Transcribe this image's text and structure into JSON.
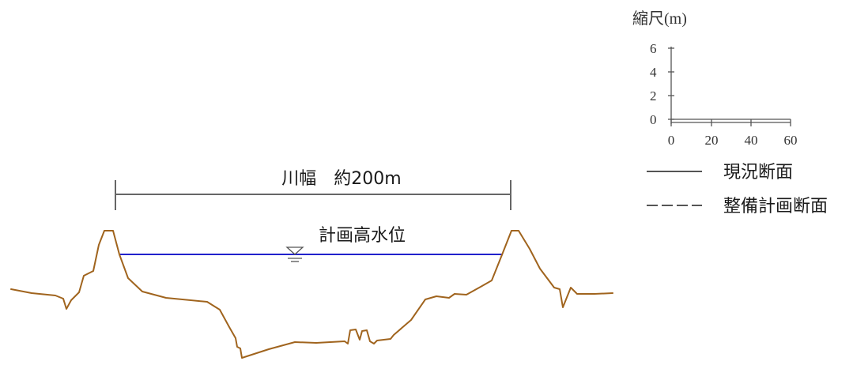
{
  "diagram": {
    "width_label": "川幅　約200m",
    "water_level_label": "計画高水位",
    "colors": {
      "ground": "#a0641e",
      "water": "#2222cc",
      "dimension": "#666666",
      "scale": "#555555"
    }
  },
  "scale": {
    "title": "縮尺(m)",
    "y_ticks": [
      "6",
      "4",
      "2",
      "0"
    ],
    "x_ticks": [
      "0",
      "20",
      "40",
      "60"
    ]
  },
  "legend": {
    "items": [
      {
        "label": "現況断面",
        "line_style": "solid"
      },
      {
        "label": "整備計画断面",
        "line_style": "dashed"
      }
    ]
  }
}
